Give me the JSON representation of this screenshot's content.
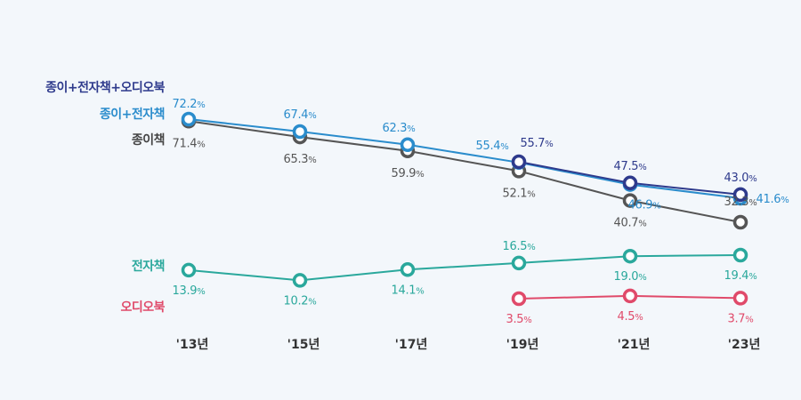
{
  "chart_data": {
    "type": "line",
    "categories": [
      "'13년",
      "'15년",
      "'17년",
      "'19년",
      "'21년",
      "'23년"
    ],
    "series": [
      {
        "name": "종이+전자책+오디오북",
        "color": "#2e3a8c",
        "values": [
          null,
          null,
          null,
          55.7,
          47.5,
          43.0
        ],
        "labels": [
          "",
          "",
          "",
          "55.7%",
          "47.5%",
          "43.0%"
        ]
      },
      {
        "name": "종이+전자책",
        "color": "#2a8ccc",
        "values": [
          72.2,
          67.4,
          62.3,
          55.4,
          46.9,
          41.6
        ],
        "labels": [
          "72.2%",
          "67.4%",
          "62.3%",
          "55.4%",
          "46.9%",
          "41.6%"
        ]
      },
      {
        "name": "종이책",
        "color": "#555555",
        "values": [
          71.4,
          65.3,
          59.9,
          52.1,
          40.7,
          32.3
        ],
        "labels": [
          "71.4%",
          "65.3%",
          "59.9%",
          "52.1%",
          "40.7%",
          "32.3%"
        ]
      },
      {
        "name": "전자책",
        "color": "#2aa89c",
        "values": [
          13.9,
          10.2,
          14.1,
          16.5,
          19.0,
          19.4
        ],
        "labels": [
          "13.9%",
          "10.2%",
          "14.1%",
          "16.5%",
          "19.0%",
          "19.4%"
        ]
      },
      {
        "name": "오디오북",
        "color": "#e04a6a",
        "values": [
          null,
          null,
          null,
          3.5,
          4.5,
          3.7
        ],
        "labels": [
          "",
          "",
          "",
          "3.5%",
          "4.5%",
          "3.7%"
        ]
      }
    ],
    "grid": false,
    "legend": "left"
  }
}
